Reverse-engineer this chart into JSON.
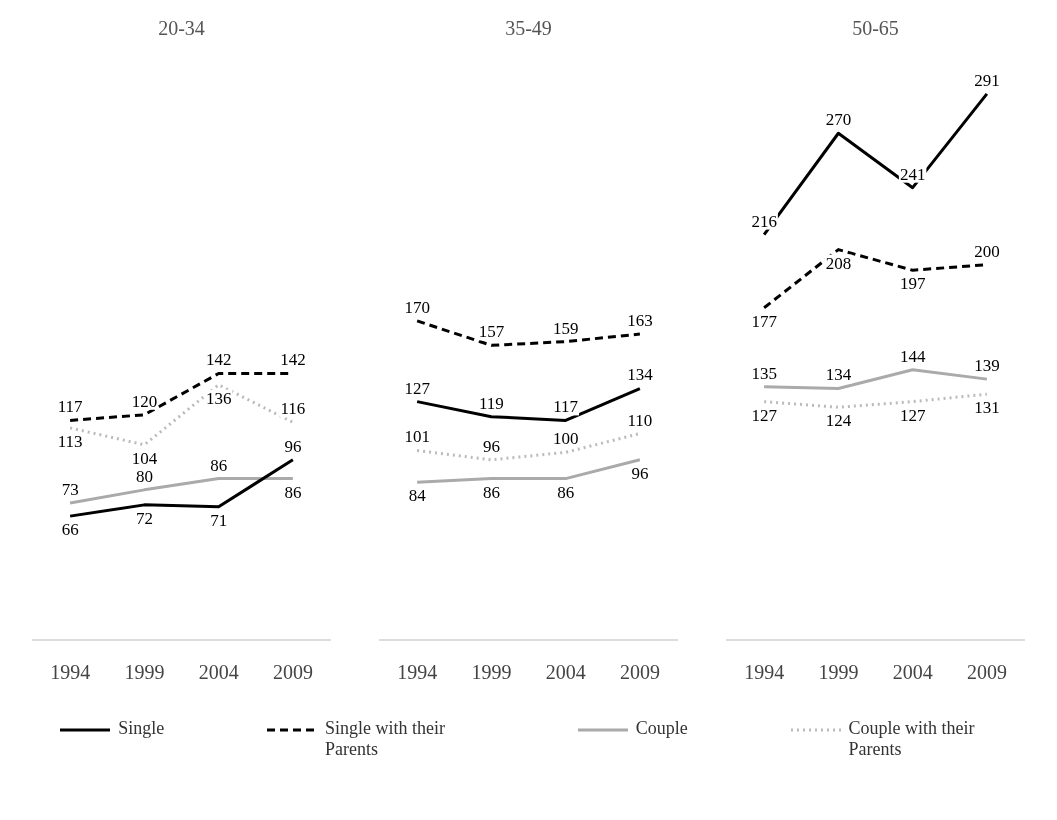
{
  "chart_data": [
    {
      "type": "line",
      "title": "20-34",
      "categories": [
        "1994",
        "1999",
        "2004",
        "2009"
      ],
      "data_labels": true,
      "legend": "bottom",
      "grid": false,
      "marker": "none",
      "series": [
        {
          "name": "Single",
          "color": "#000000",
          "line_style": "solid",
          "values": [
            66,
            72,
            71,
            96
          ]
        },
        {
          "name": "Single with their Parents",
          "color": "#000000",
          "line_style": "dashed",
          "values": [
            117,
            120,
            142,
            142
          ]
        },
        {
          "name": "Couple",
          "color": "#aaaaaa",
          "line_style": "solid",
          "values": [
            73,
            80,
            86,
            86
          ]
        },
        {
          "name": "Couple with their Parents",
          "color": "#bbbbbb",
          "line_style": "dotted",
          "values": [
            113,
            104,
            136,
            116
          ]
        }
      ]
    },
    {
      "type": "line",
      "title": "35-49",
      "categories": [
        "1994",
        "1999",
        "2004",
        "2009"
      ],
      "data_labels": true,
      "grid": false,
      "marker": "none",
      "series": [
        {
          "color": "#000000",
          "line_style": "solid",
          "values": [
            127,
            119,
            117,
            134
          ]
        },
        {
          "color": "#000000",
          "line_style": "dashed",
          "values": [
            170,
            157,
            159,
            163
          ]
        },
        {
          "color": "#aaaaaa",
          "line_style": "solid",
          "values": [
            84,
            86,
            86,
            96
          ]
        },
        {
          "color": "#bbbbbb",
          "line_style": "dotted",
          "values": [
            101,
            96,
            100,
            110
          ]
        }
      ]
    },
    {
      "type": "line",
      "title": "50-65",
      "categories": [
        "1994",
        "1999",
        "2004",
        "2009"
      ],
      "data_labels": true,
      "grid": false,
      "marker": "none",
      "series": [
        {
          "color": "#000000",
          "line_style": "solid",
          "values": [
            216,
            270,
            241,
            291
          ]
        },
        {
          "color": "#000000",
          "line_style": "dashed",
          "values": [
            177,
            208,
            197,
            200
          ]
        },
        {
          "color": "#aaaaaa",
          "line_style": "solid",
          "values": [
            135,
            134,
            144,
            139
          ]
        },
        {
          "color": "#bbbbbb",
          "line_style": "dotted",
          "values": [
            127,
            124,
            127,
            131
          ]
        }
      ]
    }
  ]
}
